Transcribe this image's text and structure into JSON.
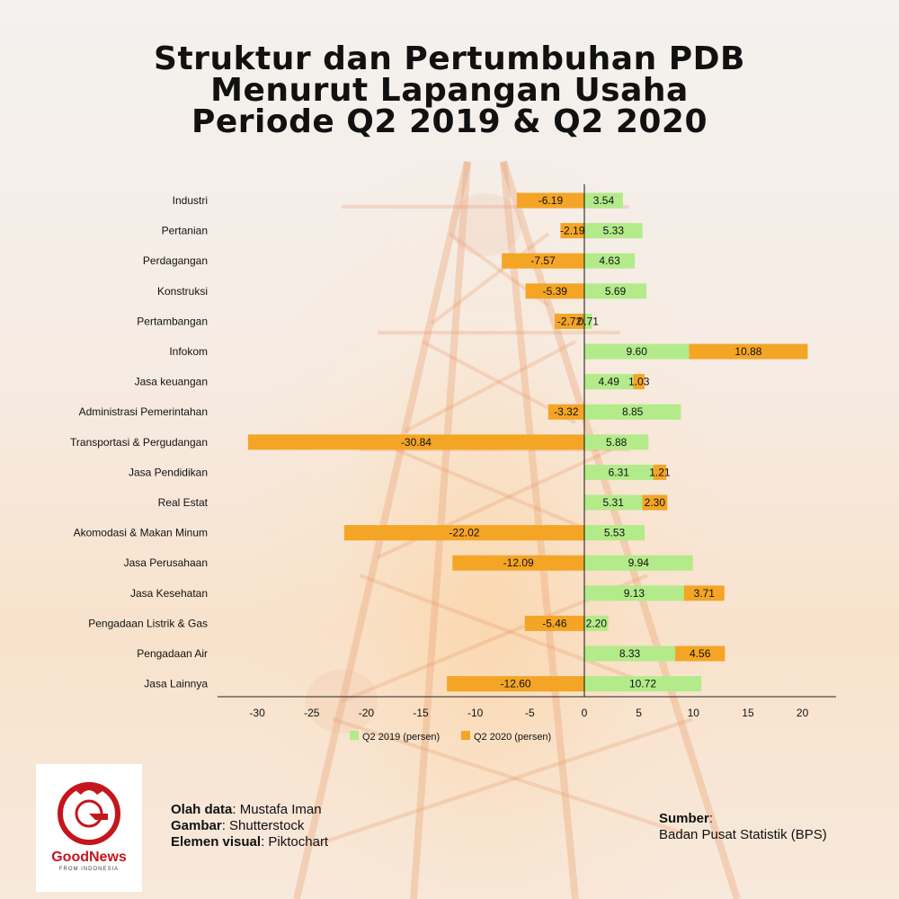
{
  "title_lines": [
    "Struktur dan Pertumbuhan PDB",
    "Menurut Lapangan Usaha",
    "Periode Q2 2019 & Q2 2020"
  ],
  "colors": {
    "q2019": "#b3eb8a",
    "q2020": "#f4a525",
    "axis": "#222222",
    "logo": "#c5161d"
  },
  "chart_data": {
    "type": "bar",
    "orientation": "horizontal",
    "categories": [
      "Industri",
      "Pertanian",
      "Perdagangan",
      "Konstruksi",
      "Pertambangan",
      "Infokom",
      "Jasa keuangan",
      "Administrasi Pemerintahan",
      "Transportasi & Pergudangan",
      "Jasa Pendidikan",
      "Real Estat",
      "Akomodasi & Makan Minum",
      "Jasa Perusahaan",
      "Jasa Kesehatan",
      "Pengadaan Listrik & Gas",
      "Pengadaan Air",
      "Jasa Lainnya"
    ],
    "series": [
      {
        "name": "Q2 2019 (persen)",
        "values": [
          3.54,
          5.33,
          4.63,
          5.69,
          0.71,
          9.6,
          4.49,
          8.85,
          5.88,
          6.31,
          5.31,
          5.53,
          9.94,
          9.13,
          2.2,
          8.33,
          10.72
        ]
      },
      {
        "name": "Q2 2020 (persen)",
        "values": [
          -6.19,
          -2.19,
          -7.57,
          -5.39,
          -2.72,
          10.88,
          1.03,
          -3.32,
          -30.84,
          1.21,
          2.3,
          -22.02,
          -12.09,
          3.71,
          -5.46,
          4.56,
          -12.6
        ]
      }
    ],
    "value_labels": {
      "q2019": [
        "3.54",
        "5.33",
        "4.63",
        "5.69",
        "0.71",
        "9.60",
        "4.49",
        "8.85",
        "5.88",
        "6.31",
        "5.31",
        "5.53",
        "9.94",
        "9.13",
        "2.20",
        "8.33",
        "10.72"
      ],
      "q2020": [
        "-6.19",
        "-2.19",
        "-7.57",
        "-5.39",
        "-2.72",
        "10.88",
        "1.03",
        "-3.32",
        "-30.84",
        "1.21",
        "2.30",
        "-22.02",
        "-12.09",
        "3.71",
        "-5.46",
        "4.56",
        "-12.60"
      ]
    },
    "stacked": true,
    "xlim": [
      -31.5,
      23
    ],
    "xticks": [
      -30,
      -25,
      -20,
      -15,
      -10,
      -5,
      0,
      5,
      10,
      15,
      20
    ],
    "grid": false,
    "legend_position": "bottom"
  },
  "credits": [
    {
      "label": "Olah data",
      "value": "Mustafa Iman"
    },
    {
      "label": "Gambar",
      "value": "Shutterstock"
    },
    {
      "label": "Elemen visual",
      "value": "Piktochart"
    }
  ],
  "source": {
    "label": "Sumber",
    "value": "Badan Pusat Statistik (BPS)"
  },
  "logo": {
    "name": "GoodNews",
    "sub": "FROM INDONESIA"
  }
}
